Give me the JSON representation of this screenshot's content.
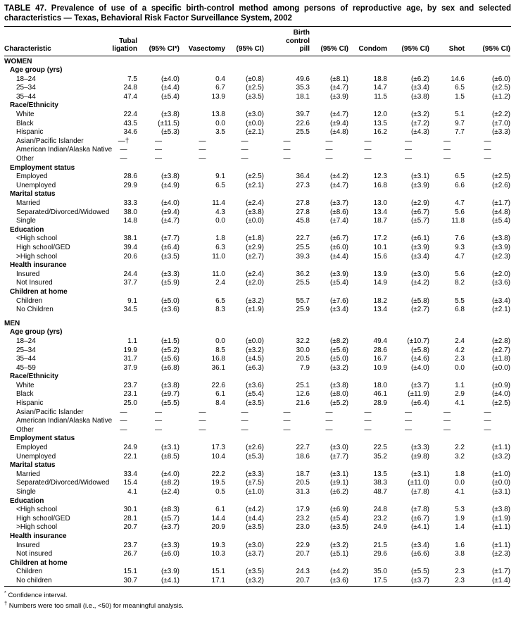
{
  "title": "TABLE 47. Prevalence of use of a specific birth-control method among persons of reproductive age, by sex and selected characteristics — Texas, Behavioral Risk Factor Surveillance System, 2002",
  "table": {
    "columns": [
      {
        "id": "characteristic",
        "label": "Characteristic"
      },
      {
        "id": "tubal-ligation",
        "label": "Tubal\nligation"
      },
      {
        "id": "ci-tubal-ligation",
        "label": "(95% CI*)"
      },
      {
        "id": "vasectomy",
        "label": "Vasectomy"
      },
      {
        "id": "ci-vasectomy",
        "label": "(95% CI)"
      },
      {
        "id": "birth-control-pill",
        "label": "Birth\ncontrol\npill"
      },
      {
        "id": "ci-birth-control-pill",
        "label": "(95% CI)"
      },
      {
        "id": "condom",
        "label": "Condom"
      },
      {
        "id": "ci-condom",
        "label": "(95% CI)"
      },
      {
        "id": "shot",
        "label": "Shot"
      },
      {
        "id": "ci-shot",
        "label": "(95% CI)"
      }
    ],
    "sections": [
      {
        "name": "WOMEN",
        "groups": [
          {
            "label": "Age group (yrs)",
            "rows": [
              {
                "label": "18–24",
                "values": [
                  "7.5",
                  "(±4.0)",
                  "0.4",
                  "(±0.8)",
                  "49.6",
                  "(±8.1)",
                  "18.8",
                  "(±6.2)",
                  "14.6",
                  "(±6.0)"
                ]
              },
              {
                "label": "25–34",
                "values": [
                  "24.8",
                  "(±4.4)",
                  "6.7",
                  "(±2.5)",
                  "35.3",
                  "(±4.7)",
                  "14.7",
                  "(±3.4)",
                  "6.5",
                  "(±2.5)"
                ]
              },
              {
                "label": "35–44",
                "values": [
                  "47.4",
                  "(±5.4)",
                  "13.9",
                  "(±3.5)",
                  "18.1",
                  "(±3.9)",
                  "11.5",
                  "(±3.8)",
                  "1.5",
                  "(±1.2)"
                ]
              }
            ]
          },
          {
            "label": "Race/Ethnicity",
            "rows": [
              {
                "label": "White",
                "values": [
                  "22.4",
                  "(±3.8)",
                  "13.8",
                  "(±3.0)",
                  "39.7",
                  "(±4.7)",
                  "12.0",
                  "(±3.2)",
                  "5.1",
                  "(±2.2)"
                ]
              },
              {
                "label": "Black",
                "values": [
                  "43.5",
                  "(±11.5)",
                  "0.0",
                  "(±0.0)",
                  "22.6",
                  "(±9.4)",
                  "13.5",
                  "(±7.2)",
                  "9.7",
                  "(±7.0)"
                ]
              },
              {
                "label": "Hispanic",
                "values": [
                  "34.6",
                  "(±5.3)",
                  "3.5",
                  "(±2.1)",
                  "25.5",
                  "(±4.8)",
                  "16.2",
                  "(±4.3)",
                  "7.7",
                  "(±3.3)"
                ]
              },
              {
                "label": "Asian/Pacific Islander",
                "values": [
                  "—†",
                  "—",
                  "—",
                  "—",
                  "—",
                  "—",
                  "—",
                  "—",
                  "—",
                  "—"
                ]
              },
              {
                "label": "American Indian/Alaska Native",
                "values": [
                  "—",
                  "—",
                  "—",
                  "—",
                  "—",
                  "—",
                  "—",
                  "—",
                  "—",
                  "—"
                ]
              },
              {
                "label": "Other",
                "values": [
                  "—",
                  "—",
                  "—",
                  "—",
                  "—",
                  "—",
                  "—",
                  "—",
                  "—",
                  "—"
                ]
              }
            ]
          },
          {
            "label": "Employment status",
            "rows": [
              {
                "label": "Employed",
                "values": [
                  "28.6",
                  "(±3.8)",
                  "9.1",
                  "(±2.5)",
                  "36.4",
                  "(±4.2)",
                  "12.3",
                  "(±3.1)",
                  "6.5",
                  "(±2.5)"
                ]
              },
              {
                "label": "Unemployed",
                "values": [
                  "29.9",
                  "(±4.9)",
                  "6.5",
                  "(±2.1)",
                  "27.3",
                  "(±4.7)",
                  "16.8",
                  "(±3.9)",
                  "6.6",
                  "(±2.6)"
                ]
              }
            ]
          },
          {
            "label": "Marital status",
            "rows": [
              {
                "label": "Married",
                "values": [
                  "33.3",
                  "(±4.0)",
                  "11.4",
                  "(±2.4)",
                  "27.8",
                  "(±3.7)",
                  "13.0",
                  "(±2.9)",
                  "4.7",
                  "(±1.7)"
                ]
              },
              {
                "label": "Separated/Divorced/Widowed",
                "values": [
                  "38.0",
                  "(±9.4)",
                  "4.3",
                  "(±3.8)",
                  "27.8",
                  "(±8.6)",
                  "13.4",
                  "(±6.7)",
                  "5.6",
                  "(±4.8)"
                ]
              },
              {
                "label": "Single",
                "values": [
                  "14.8",
                  "(±4.7)",
                  "0.0",
                  "(±0.0)",
                  "45.8",
                  "(±7.4)",
                  "18.7",
                  "(±5.7)",
                  "11.8",
                  "(±5.4)"
                ]
              }
            ]
          },
          {
            "label": "Education",
            "rows": [
              {
                "label": "<High school",
                "values": [
                  "38.1",
                  "(±7.7)",
                  "1.8",
                  "(±1.8)",
                  "22.7",
                  "(±6.7)",
                  "17.2",
                  "(±6.1)",
                  "7.6",
                  "(±3.8)"
                ]
              },
              {
                "label": "High school/GED",
                "values": [
                  "39.4",
                  "(±6.4)",
                  "6.3",
                  "(±2.9)",
                  "25.5",
                  "(±6.0)",
                  "10.1",
                  "(±3.9)",
                  "9.3",
                  "(±3.9)"
                ]
              },
              {
                "label": ">High school",
                "values": [
                  "20.6",
                  "(±3.5)",
                  "11.0",
                  "(±2.7)",
                  "39.3",
                  "(±4.4)",
                  "15.6",
                  "(±3.4)",
                  "4.7",
                  "(±2.3)"
                ]
              }
            ]
          },
          {
            "label": "Health insurance",
            "rows": [
              {
                "label": "Insured",
                "values": [
                  "24.4",
                  "(±3.3)",
                  "11.0",
                  "(±2.4)",
                  "36.2",
                  "(±3.9)",
                  "13.9",
                  "(±3.0)",
                  "5.6",
                  "(±2.0)"
                ]
              },
              {
                "label": "Not Insured",
                "values": [
                  "37.7",
                  "(±5.9)",
                  "2.4",
                  "(±2.0)",
                  "25.5",
                  "(±5.4)",
                  "14.9",
                  "(±4.2)",
                  "8.2",
                  "(±3.6)"
                ]
              }
            ]
          },
          {
            "label": "Children at home",
            "rows": [
              {
                "label": "Children",
                "values": [
                  "9.1",
                  "(±5.0)",
                  "6.5",
                  "(±3.2)",
                  "55.7",
                  "(±7.6)",
                  "18.2",
                  "(±5.8)",
                  "5.5",
                  "(±3.4)"
                ]
              },
              {
                "label": "No Children",
                "values": [
                  "34.5",
                  "(±3.6)",
                  "8.3",
                  "(±1.9)",
                  "25.9",
                  "(±3.4)",
                  "13.4",
                  "(±2.7)",
                  "6.8",
                  "(±2.1)"
                ]
              }
            ]
          }
        ]
      },
      {
        "name": "MEN",
        "groups": [
          {
            "label": "Age group (yrs)",
            "rows": [
              {
                "label": "18–24",
                "values": [
                  "1.1",
                  "(±1.5)",
                  "0.0",
                  "(±0.0)",
                  "32.2",
                  "(±8.2)",
                  "49.4",
                  "(±10.7)",
                  "2.4",
                  "(±2.8)"
                ]
              },
              {
                "label": "25–34",
                "values": [
                  "19.9",
                  "(±5.2)",
                  "8.5",
                  "(±3.2)",
                  "30.0",
                  "(±5.6)",
                  "28.6",
                  "(±5.8)",
                  "4.2",
                  "(±2.7)"
                ]
              },
              {
                "label": "35–44",
                "values": [
                  "31.7",
                  "(±5.6)",
                  "16.8",
                  "(±4.5)",
                  "20.5",
                  "(±5.0)",
                  "16.7",
                  "(±4.6)",
                  "2.3",
                  "(±1.8)"
                ]
              },
              {
                "label": "45–59",
                "values": [
                  "37.9",
                  "(±6.8)",
                  "36.1",
                  "(±6.3)",
                  "7.9",
                  "(±3.2)",
                  "10.9",
                  "(±4.0)",
                  "0.0",
                  "(±0.0)"
                ]
              }
            ]
          },
          {
            "label": "Race/Ethnicity",
            "rows": [
              {
                "label": "White",
                "values": [
                  "23.7",
                  "(±3.8)",
                  "22.6",
                  "(±3.6)",
                  "25.1",
                  "(±3.8)",
                  "18.0",
                  "(±3.7)",
                  "1.1",
                  "(±0.9)"
                ]
              },
              {
                "label": "Black",
                "values": [
                  "23.1",
                  "(±9.7)",
                  "6.1",
                  "(±5.4)",
                  "12.6",
                  "(±8.0)",
                  "46.1",
                  "(±11.9)",
                  "2.9",
                  "(±4.0)"
                ]
              },
              {
                "label": "Hispanic",
                "values": [
                  "25.0",
                  "(±5.5)",
                  "8.4",
                  "(±3.5)",
                  "21.6",
                  "(±5.2)",
                  "28.9",
                  "(±6.4)",
                  "4.1",
                  "(±2.5)"
                ]
              },
              {
                "label": "Asian/Pacific Islander",
                "values": [
                  "—",
                  "—",
                  "—",
                  "—",
                  "—",
                  "—",
                  "—",
                  "—",
                  "—",
                  "—"
                ]
              },
              {
                "label": "American Indian/Alaska Native",
                "values": [
                  "—",
                  "—",
                  "—",
                  "—",
                  "—",
                  "—",
                  "—",
                  "—",
                  "—",
                  "—"
                ]
              },
              {
                "label": "Other",
                "values": [
                  "—",
                  "—",
                  "—",
                  "—",
                  "—",
                  "—",
                  "—",
                  "—",
                  "—",
                  "—"
                ]
              }
            ]
          },
          {
            "label": "Employment status",
            "rows": [
              {
                "label": "Employed",
                "values": [
                  "24.9",
                  "(±3.1)",
                  "17.3",
                  "(±2.6)",
                  "22.7",
                  "(±3.0)",
                  "22.5",
                  "(±3.3)",
                  "2.2",
                  "(±1.1)"
                ]
              },
              {
                "label": "Unemployed",
                "values": [
                  "22.1",
                  "(±8.5)",
                  "10.4",
                  "(±5.3)",
                  "18.6",
                  "(±7.7)",
                  "35.2",
                  "(±9.8)",
                  "3.2",
                  "(±3.2)"
                ]
              }
            ]
          },
          {
            "label": "Marital status",
            "rows": [
              {
                "label": "Married",
                "values": [
                  "33.4",
                  "(±4.0)",
                  "22.2",
                  "(±3.3)",
                  "18.7",
                  "(±3.1)",
                  "13.5",
                  "(±3.1)",
                  "1.8",
                  "(±1.0)"
                ]
              },
              {
                "label": "Separated/Divorced/Widowed",
                "values": [
                  "15.4",
                  "(±8.2)",
                  "19.5",
                  "(±7.5)",
                  "20.5",
                  "(±9.1)",
                  "38.3",
                  "(±11.0)",
                  "0.0",
                  "(±0.0)"
                ]
              },
              {
                "label": "Single",
                "values": [
                  "4.1",
                  "(±2.4)",
                  "0.5",
                  "(±1.0)",
                  "31.3",
                  "(±6.2)",
                  "48.7",
                  "(±7.8)",
                  "4.1",
                  "(±3.1)"
                ]
              }
            ]
          },
          {
            "label": "Education",
            "rows": [
              {
                "label": "<High school",
                "values": [
                  "30.1",
                  "(±8.3)",
                  "6.1",
                  "(±4.2)",
                  "17.9",
                  "(±6.9)",
                  "24.8",
                  "(±7.8)",
                  "5.3",
                  "(±3.8)"
                ]
              },
              {
                "label": "High school/GED",
                "values": [
                  "28.1",
                  "(±5.7)",
                  "14.4",
                  "(±4.4)",
                  "23.2",
                  "(±5.4)",
                  "23.2",
                  "(±6.7)",
                  "1.9",
                  "(±1.9)"
                ]
              },
              {
                "label": ">High school",
                "values": [
                  "20.7",
                  "(±3.7)",
                  "20.9",
                  "(±3.5)",
                  "23.0",
                  "(±3.5)",
                  "24.9",
                  "(±4.1)",
                  "1.4",
                  "(±1.1)"
                ]
              }
            ]
          },
          {
            "label": "Health insurance",
            "rows": [
              {
                "label": "Insured",
                "values": [
                  "23.7",
                  "(±3.3)",
                  "19.3",
                  "(±3.0)",
                  "22.9",
                  "(±3.2)",
                  "21.5",
                  "(±3.4)",
                  "1.6",
                  "(±1.1)"
                ]
              },
              {
                "label": "Not insured",
                "values": [
                  "26.7",
                  "(±6.0)",
                  "10.3",
                  "(±3.7)",
                  "20.7",
                  "(±5.1)",
                  "29.6",
                  "(±6.6)",
                  "3.8",
                  "(±2.3)"
                ]
              }
            ]
          },
          {
            "label": "Children at home",
            "rows": [
              {
                "label": "Children",
                "values": [
                  "15.1",
                  "(±3.9)",
                  "15.1",
                  "(±3.5)",
                  "24.3",
                  "(±4.2)",
                  "35.0",
                  "(±5.5)",
                  "2.3",
                  "(±1.7)"
                ]
              },
              {
                "label": "No children",
                "values": [
                  "30.7",
                  "(±4.1)",
                  "17.1",
                  "(±3.2)",
                  "20.7",
                  "(±3.6)",
                  "17.5",
                  "(±3.7)",
                  "2.3",
                  "(±1.4)"
                ]
              }
            ]
          }
        ]
      }
    ]
  },
  "footnotes": [
    {
      "marker": "*",
      "text": "Confidence interval."
    },
    {
      "marker": "†",
      "text": "Numbers were too small (i.e., <50) for meaningful analysis."
    }
  ]
}
